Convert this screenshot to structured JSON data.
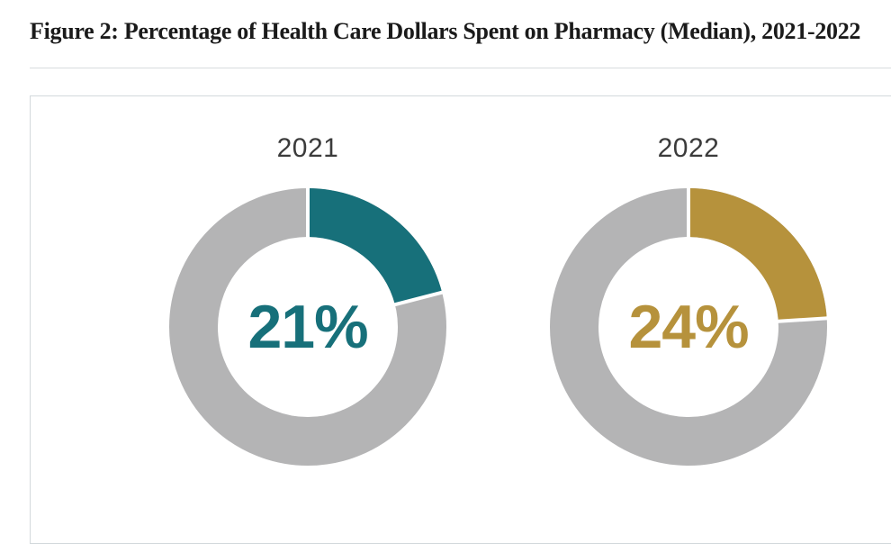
{
  "figure": {
    "title": "Figure 2: Percentage of Health Care Dollars Spent on Pharmacy (Median), 2021-2022"
  },
  "chart_data": {
    "type": "pie",
    "subtype": "paired-donuts",
    "title": "Percentage of Health Care Dollars Spent on Pharmacy (Median), 2021-2022",
    "start_angle_deg": -90,
    "direction": "clockwise",
    "hole_ratio": 0.65,
    "remainder_color": "#b4b4b5",
    "separator_color": "#ffffff",
    "charts": [
      {
        "label": "2021",
        "value_pct": 21,
        "display": "21%",
        "accent_color": "#17707a",
        "remainder_pct": 79
      },
      {
        "label": "2022",
        "value_pct": 24,
        "display": "24%",
        "accent_color": "#b6923c",
        "remainder_pct": 76
      }
    ]
  },
  "colors": {
    "title_text": "#1a1a1a",
    "year_label_text": "#3b3b3b",
    "divider": "#d8dcde",
    "card_border": "#d3d9dc",
    "background": "#ffffff"
  }
}
